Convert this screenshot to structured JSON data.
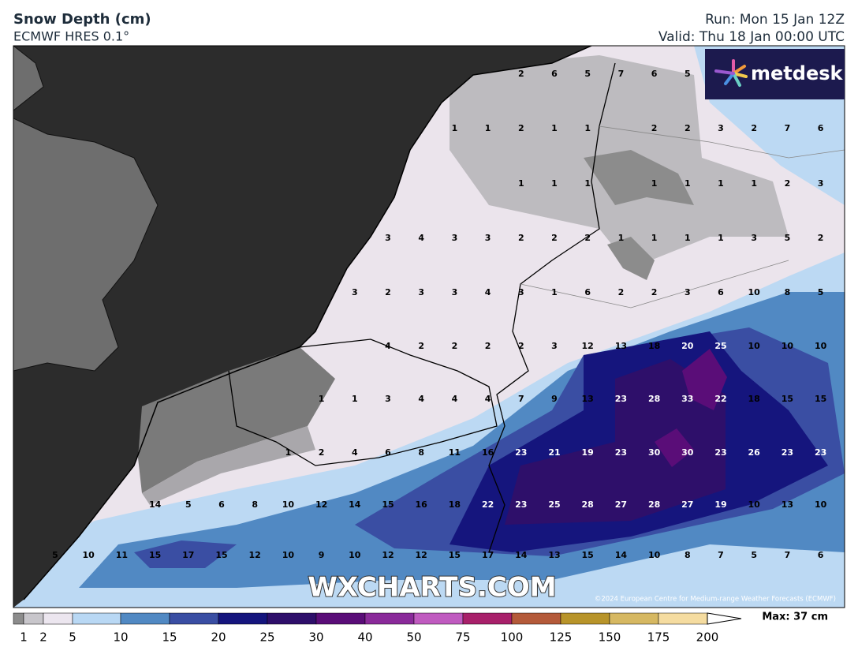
{
  "header": {
    "title": "Snow Depth (cm)",
    "subtitle": "ECMWF HRES 0.1°",
    "run": "Run: Mon 15 Jan 12Z",
    "valid": "Valid: Thu 18 Jan 00:00 UTC"
  },
  "logo": "metdesk",
  "watermark": "WXCHARTS.COM",
  "copyright": "©2024 European Centre for Medium-range Weather Forecasts (ECMWF)",
  "map_labels": {
    "rows": [
      [
        null,
        null,
        null,
        null,
        null,
        null,
        null,
        null,
        null,
        null,
        null,
        null,
        null,
        null,
        2,
        6,
        5,
        7,
        6,
        5,
        null,
        null,
        null,
        null
      ],
      [
        null,
        null,
        null,
        null,
        null,
        null,
        null,
        null,
        null,
        null,
        null,
        null,
        1,
        1,
        2,
        1,
        1,
        null,
        2,
        2,
        3,
        2,
        7,
        6
      ],
      [
        null,
        null,
        null,
        null,
        null,
        null,
        null,
        null,
        null,
        null,
        null,
        null,
        null,
        null,
        1,
        1,
        1,
        null,
        1,
        1,
        1,
        1,
        2,
        3
      ],
      [
        null,
        null,
        null,
        null,
        null,
        null,
        null,
        null,
        null,
        null,
        3,
        4,
        3,
        3,
        2,
        2,
        2,
        1,
        1,
        1,
        1,
        3,
        5,
        2
      ],
      [
        null,
        null,
        null,
        null,
        null,
        null,
        null,
        null,
        null,
        3,
        2,
        3,
        3,
        4,
        3,
        1,
        6,
        2,
        2,
        3,
        6,
        10,
        8,
        5
      ],
      [
        null,
        null,
        null,
        null,
        null,
        null,
        null,
        null,
        null,
        null,
        4,
        2,
        2,
        2,
        2,
        3,
        12,
        13,
        18,
        20,
        25,
        10,
        10,
        10
      ],
      [
        null,
        null,
        null,
        null,
        null,
        null,
        null,
        null,
        1,
        1,
        3,
        4,
        4,
        4,
        7,
        9,
        13,
        23,
        28,
        33,
        22,
        18,
        15,
        15
      ],
      [
        null,
        null,
        null,
        null,
        null,
        null,
        null,
        1,
        2,
        4,
        6,
        8,
        11,
        16,
        23,
        21,
        19,
        23,
        30,
        30,
        23,
        26,
        23,
        23
      ],
      [
        null,
        null,
        null,
        14,
        5,
        6,
        8,
        10,
        12,
        14,
        15,
        16,
        18,
        22,
        23,
        25,
        28,
        27,
        28,
        27,
        19,
        10,
        13,
        10
      ],
      [
        5,
        10,
        11,
        15,
        17,
        15,
        12,
        10,
        9,
        10,
        12,
        12,
        15,
        17,
        14,
        13,
        15,
        14,
        10,
        8,
        7,
        5,
        7,
        6
      ]
    ]
  },
  "legend": {
    "ticks": [
      1,
      2,
      5,
      10,
      15,
      20,
      25,
      30,
      40,
      50,
      75,
      100,
      125,
      150,
      175,
      200
    ],
    "colors": [
      "#8c8c8c",
      "#c8c6cb",
      "#ece6ef",
      "#b9d8f4",
      "#5189c3",
      "#3a4ea3",
      "#15157d",
      "#2e0f6a",
      "#5a0d78",
      "#8a2a9a",
      "#c05bc0",
      "#a8206a",
      "#b45a3a",
      "#b8942a",
      "#d6b862",
      "#f5dca0"
    ],
    "max": "Max: 37 cm"
  }
}
